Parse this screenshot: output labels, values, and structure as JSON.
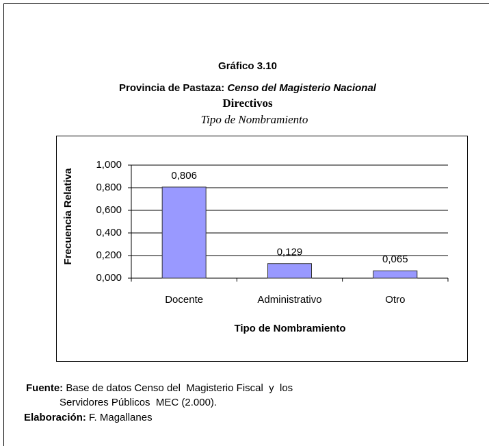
{
  "header": {
    "figure": "Gráfico 3.10",
    "province": "Provincia de Pastaza:",
    "census": "Censo del Magisterio Nacional",
    "group": "Directivos",
    "subtitle": "Tipo de Nombramiento"
  },
  "chart_data": {
    "type": "bar",
    "categories": [
      "Docente",
      "Administrativo",
      "Otro"
    ],
    "values": [
      0.806,
      0.129,
      0.065
    ],
    "value_labels": [
      "0,806",
      "0,129",
      "0,065"
    ],
    "color": "#9999ff",
    "x_label": "Tipo de Nombramiento",
    "y_label": "Frecuencia Relativa",
    "ylim": [
      0,
      1
    ],
    "yticks": [
      {
        "value": 0,
        "label": "0,000"
      },
      {
        "value": 0.2,
        "label": "0,200"
      },
      {
        "value": 0.4,
        "label": "0,400"
      },
      {
        "value": 0.6,
        "label": "0,600"
      },
      {
        "value": 0.8,
        "label": "0,800"
      },
      {
        "value": 1,
        "label": "1,000"
      }
    ],
    "grid": true
  },
  "footer": {
    "source_label": "Fuente:",
    "source_lines": [
      "Base de datos Censo del  Magisterio Fiscal  y  los",
      "Servidores Públicos  MEC (2.000)."
    ],
    "author_label": "Elaboración:",
    "author": "F. Magallanes"
  }
}
